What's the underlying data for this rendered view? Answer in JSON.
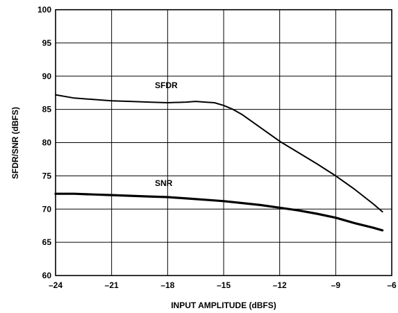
{
  "chart_data": {
    "type": "line",
    "xlabel": "INPUT AMPLITUDE (dBFS)",
    "ylabel": "SFDR/SNR (dBFS)",
    "xlim": [
      -24,
      -6
    ],
    "ylim": [
      60,
      100
    ],
    "x_ticks": [
      -24,
      -21,
      -18,
      -15,
      -12,
      -9,
      -6
    ],
    "x_tick_labels": [
      "–24",
      "–21",
      "–18",
      "–15",
      "–12",
      "–9",
      "–6"
    ],
    "y_ticks": [
      60,
      65,
      70,
      75,
      80,
      85,
      90,
      95,
      100
    ],
    "y_tick_labels": [
      "60",
      "65",
      "70",
      "75",
      "80",
      "85",
      "90",
      "95",
      "100"
    ],
    "grid": true,
    "series": [
      {
        "name": "SFDR",
        "x": [
          -24,
          -23,
          -22,
          -21,
          -20,
          -19,
          -18,
          -17,
          -16.5,
          -16,
          -15.5,
          -15,
          -14.5,
          -14,
          -13,
          -12,
          -11,
          -10,
          -9,
          -8,
          -7,
          -6.5
        ],
        "y": [
          87.2,
          86.7,
          86.5,
          86.3,
          86.2,
          86.1,
          86.0,
          86.1,
          86.2,
          86.1,
          86.0,
          85.6,
          85.0,
          84.2,
          82.2,
          80.2,
          78.5,
          76.8,
          75.0,
          73.0,
          70.8,
          69.6
        ]
      },
      {
        "name": "SNR",
        "x": [
          -24,
          -23,
          -22,
          -21,
          -20,
          -19,
          -18,
          -17,
          -16,
          -15,
          -14,
          -13,
          -12,
          -11,
          -10,
          -9,
          -8,
          -7,
          -6.5
        ],
        "y": [
          72.3,
          72.3,
          72.2,
          72.1,
          72.0,
          71.9,
          71.8,
          71.6,
          71.4,
          71.2,
          70.9,
          70.6,
          70.2,
          69.8,
          69.3,
          68.7,
          67.9,
          67.2,
          66.8
        ]
      }
    ]
  }
}
